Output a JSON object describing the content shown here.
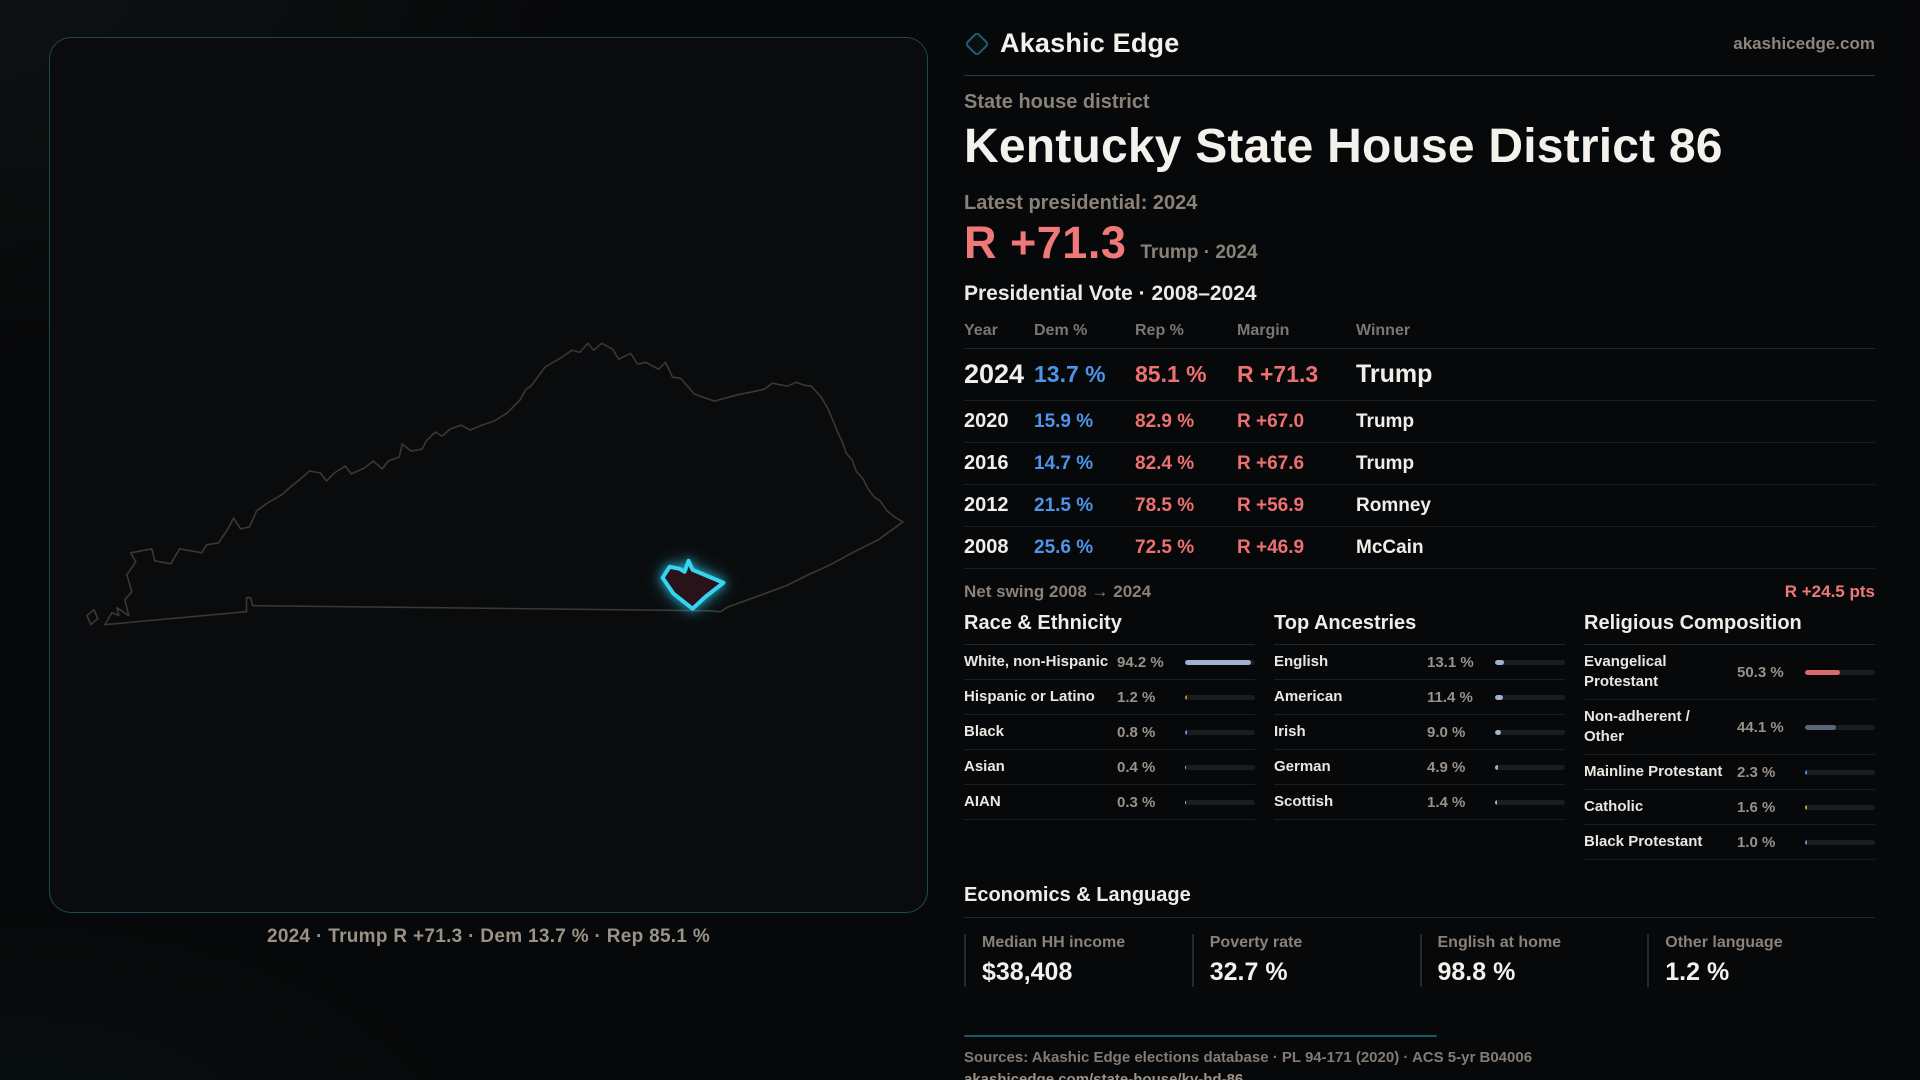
{
  "header": {
    "brand": "Akashic Edge",
    "site": "akashicedge.com",
    "subtitle": "State house district",
    "title": "Kentucky State House District 86"
  },
  "latest": {
    "label": "Latest presidential: 2024",
    "margin": "R +71.3",
    "detail": "Trump · 2024"
  },
  "vote_table": {
    "title": "Presidential Vote · 2008–2024",
    "columns": [
      "Year",
      "Dem %",
      "Rep %",
      "Margin",
      "Winner"
    ],
    "rows": [
      {
        "year": "2024",
        "dem": "13.7 %",
        "rep": "85.1 %",
        "margin": "R +71.3",
        "winner": "Trump"
      },
      {
        "year": "2020",
        "dem": "15.9 %",
        "rep": "82.9 %",
        "margin": "R +67.0",
        "winner": "Trump"
      },
      {
        "year": "2016",
        "dem": "14.7 %",
        "rep": "82.4 %",
        "margin": "R +67.6",
        "winner": "Trump"
      },
      {
        "year": "2012",
        "dem": "21.5 %",
        "rep": "78.5 %",
        "margin": "R +56.9",
        "winner": "Romney"
      },
      {
        "year": "2008",
        "dem": "25.6 %",
        "rep": "72.5 %",
        "margin": "R +46.9",
        "winner": "McCain"
      }
    ]
  },
  "net_swing": {
    "label": "Net swing 2008 → 2024",
    "value": "R +24.5 pts"
  },
  "demographics": {
    "race": {
      "heading": "Race & Ethnicity",
      "rows": [
        {
          "label": "White, non-Hispanic",
          "value": "94.2 %",
          "pct": 94.2,
          "color": "#9fb2d2"
        },
        {
          "label": "Hispanic or Latino",
          "value": "1.2 %",
          "pct": 1.2,
          "color": "#c8862a"
        },
        {
          "label": "Black",
          "value": "0.8 %",
          "pct": 0.8,
          "color": "#8a7fd8"
        },
        {
          "label": "Asian",
          "value": "0.4 %",
          "pct": 0.4,
          "color": "#9fb2d2"
        },
        {
          "label": "AIAN",
          "value": "0.3 %",
          "pct": 0.3,
          "color": "#9fb2d2"
        }
      ]
    },
    "ancestry": {
      "heading": "Top Ancestries",
      "rows": [
        {
          "label": "English",
          "value": "13.1 %",
          "pct": 13.1,
          "color": "#9fb2d2"
        },
        {
          "label": "American",
          "value": "11.4 %",
          "pct": 11.4,
          "color": "#9fb2d2"
        },
        {
          "label": "Irish",
          "value": "9.0 %",
          "pct": 9.0,
          "color": "#9fb2d2"
        },
        {
          "label": "German",
          "value": "4.9 %",
          "pct": 4.9,
          "color": "#9fb2d2"
        },
        {
          "label": "Scottish",
          "value": "1.4 %",
          "pct": 1.4,
          "color": "#9fb2d2"
        }
      ]
    },
    "religion": {
      "heading": "Religious Composition",
      "rows": [
        {
          "label": "Evangelical Protestant",
          "value": "50.3 %",
          "pct": 50.3,
          "color": "#d96a6a"
        },
        {
          "label": "Non-adherent / Other",
          "value": "44.1 %",
          "pct": 44.1,
          "color": "#5b6678"
        },
        {
          "label": "Mainline Protestant",
          "value": "2.3 %",
          "pct": 2.3,
          "color": "#4a90e2"
        },
        {
          "label": "Catholic",
          "value": "1.6 %",
          "pct": 1.6,
          "color": "#c8a23e"
        },
        {
          "label": "Black Protestant",
          "value": "1.0 %",
          "pct": 1.0,
          "color": "#8a7fd8"
        }
      ]
    }
  },
  "economics": {
    "heading": "Economics & Language",
    "stats": [
      {
        "label": "Median HH income",
        "value": "$38,408"
      },
      {
        "label": "Poverty rate",
        "value": "32.7 %"
      },
      {
        "label": "English at home",
        "value": "98.8 %"
      },
      {
        "label": "Other language",
        "value": "1.2 %"
      }
    ]
  },
  "map": {
    "caption": "2024 · Trump R +71.3 · Dem 13.7 % · Rep 85.1 %"
  },
  "footer": {
    "sources": "Sources: Akashic Edge elections database · PL 94-171 (2020) · ACS 5-yr B04006",
    "url": "akashicedge.com/state-house/ky-hd-86"
  },
  "colors": {
    "accent_teal": "#1c4953",
    "district_cyan": "#35d4f0",
    "rep_red": "#ee7171",
    "dem_blue": "#4e94e8",
    "big_margin_red": "#f07878",
    "text_dim": "#8a8178",
    "text_bright": "#f1ede9"
  }
}
